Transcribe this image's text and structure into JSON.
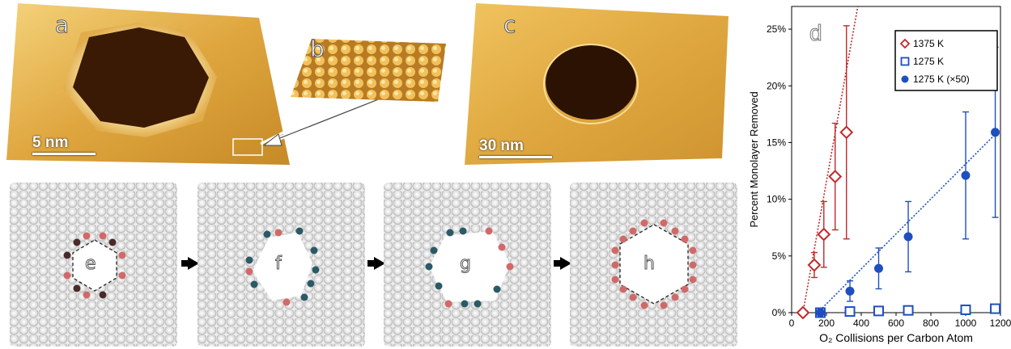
{
  "panels": {
    "a": {
      "label": "a",
      "scale_bar": "5 nm"
    },
    "b": {
      "label": "b"
    },
    "c": {
      "label": "c",
      "scale_bar": "30 nm"
    },
    "e": {
      "label": "e"
    },
    "f": {
      "label": "f"
    },
    "g": {
      "label": "g"
    },
    "h": {
      "label": "h"
    }
  },
  "colors": {
    "stm_surface": "#d9a23c",
    "stm_highlight": "#f4d27a",
    "pit": "#3a1a05",
    "edge_atom": "#d06a6a",
    "marked_atom": "#2b5a66",
    "red_series": "#c0292b",
    "blue_series": "#1f4fbf"
  },
  "chart_data": {
    "type": "scatter",
    "panel_label": "d",
    "xlabel": "O₂ Collisions per Carbon Atom",
    "ylabel": "Percent Monolayer Removed",
    "xlim": [
      0,
      1200
    ],
    "ylim": [
      0,
      27
    ],
    "x_ticks": [
      "0",
      "200",
      "400",
      "600",
      "800",
      "1000",
      "1200"
    ],
    "y_ticks": [
      "0%",
      "5%",
      "10%",
      "15%",
      "20%",
      "25%"
    ],
    "legend_position": "top-right",
    "series": [
      {
        "name": "1375 K",
        "marker": "open-diamond",
        "color": "#c0292b",
        "x": [
          65,
          130,
          185,
          250,
          315
        ],
        "y": [
          0,
          4.2,
          6.9,
          12.0,
          15.9
        ],
        "err": [
          0,
          1.1,
          2.9,
          4.7,
          9.4
        ]
      },
      {
        "name": "1275 K",
        "marker": "open-square",
        "color": "#1f4fbf",
        "x": [
          165,
          335,
          500,
          670,
          1000,
          1170
        ],
        "y": [
          0,
          0.1,
          0.15,
          0.2,
          0.25,
          0.35
        ],
        "err": [
          0,
          0,
          0,
          0,
          0,
          0
        ]
      },
      {
        "name": "1275 K (×50)",
        "marker": "filled-circle",
        "color": "#1f4fbf",
        "x": [
          165,
          335,
          500,
          670,
          1000,
          1170
        ],
        "y": [
          0,
          1.9,
          3.9,
          6.7,
          12.1,
          15.9
        ],
        "err": [
          0,
          0.9,
          1.8,
          3.1,
          5.6,
          7.5
        ]
      }
    ],
    "fits": [
      {
        "color": "#c0292b",
        "x": [
          65,
          380
        ],
        "y": [
          0,
          27
        ]
      },
      {
        "color": "#1f4fbf",
        "x": [
          150,
          1200
        ],
        "y": [
          0,
          16.2
        ]
      }
    ]
  }
}
